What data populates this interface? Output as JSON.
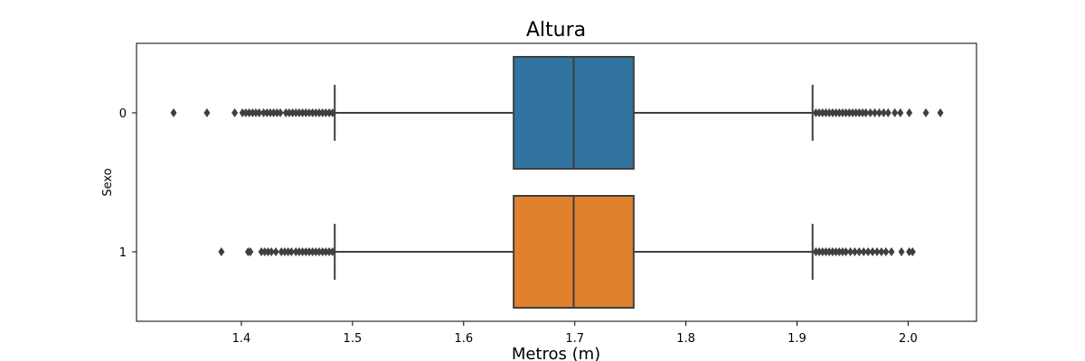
{
  "chart_data": {
    "type": "boxplot",
    "orientation": "horizontal",
    "title": "Altura",
    "xlabel": "Metros (m)",
    "ylabel": "Sexo",
    "xlim": [
      1.3,
      2.06
    ],
    "xticks": [
      1.4,
      1.5,
      1.6,
      1.7,
      1.8,
      1.9,
      2.0
    ],
    "xtick_labels": [
      "1.4",
      "1.5",
      "1.6",
      "1.7",
      "1.8",
      "1.9",
      "2.0"
    ],
    "categories": [
      "0",
      "1"
    ],
    "grid": false,
    "series": [
      {
        "category": "0",
        "color": "#3274a1",
        "whisker_low": 1.484,
        "q1": 1.645,
        "median": 1.699,
        "q3": 1.753,
        "whisker_high": 1.914,
        "outliers": [
          1.339,
          1.369,
          1.394,
          1.401,
          1.404,
          1.407,
          1.41,
          1.413,
          1.416,
          1.42,
          1.423,
          1.426,
          1.429,
          1.432,
          1.435,
          1.44,
          1.443,
          1.446,
          1.449,
          1.452,
          1.455,
          1.458,
          1.461,
          1.464,
          1.467,
          1.47,
          1.473,
          1.476,
          1.479,
          1.482,
          1.917,
          1.92,
          1.923,
          1.926,
          1.929,
          1.932,
          1.935,
          1.938,
          1.941,
          1.944,
          1.947,
          1.95,
          1.953,
          1.956,
          1.959,
          1.962,
          1.966,
          1.97,
          1.974,
          1.978,
          1.982,
          1.988,
          1.993,
          2.001,
          2.016,
          2.029
        ]
      },
      {
        "category": "1",
        "color": "#e1812c",
        "whisker_low": 1.484,
        "q1": 1.645,
        "median": 1.699,
        "q3": 1.753,
        "whisker_high": 1.914,
        "outliers": [
          1.382,
          1.406,
          1.408,
          1.418,
          1.421,
          1.424,
          1.427,
          1.431,
          1.436,
          1.439,
          1.442,
          1.445,
          1.449,
          1.452,
          1.455,
          1.458,
          1.461,
          1.464,
          1.467,
          1.47,
          1.473,
          1.476,
          1.479,
          1.482,
          1.917,
          1.92,
          1.923,
          1.926,
          1.929,
          1.932,
          1.935,
          1.938,
          1.941,
          1.944,
          1.948,
          1.952,
          1.956,
          1.96,
          1.964,
          1.968,
          1.972,
          1.976,
          1.98,
          1.985,
          1.994,
          2.001,
          2.004
        ]
      }
    ],
    "colors": {
      "box_edge": "#3f3f3f",
      "outlier": "#3f3f3f",
      "axis": "#000000"
    }
  }
}
